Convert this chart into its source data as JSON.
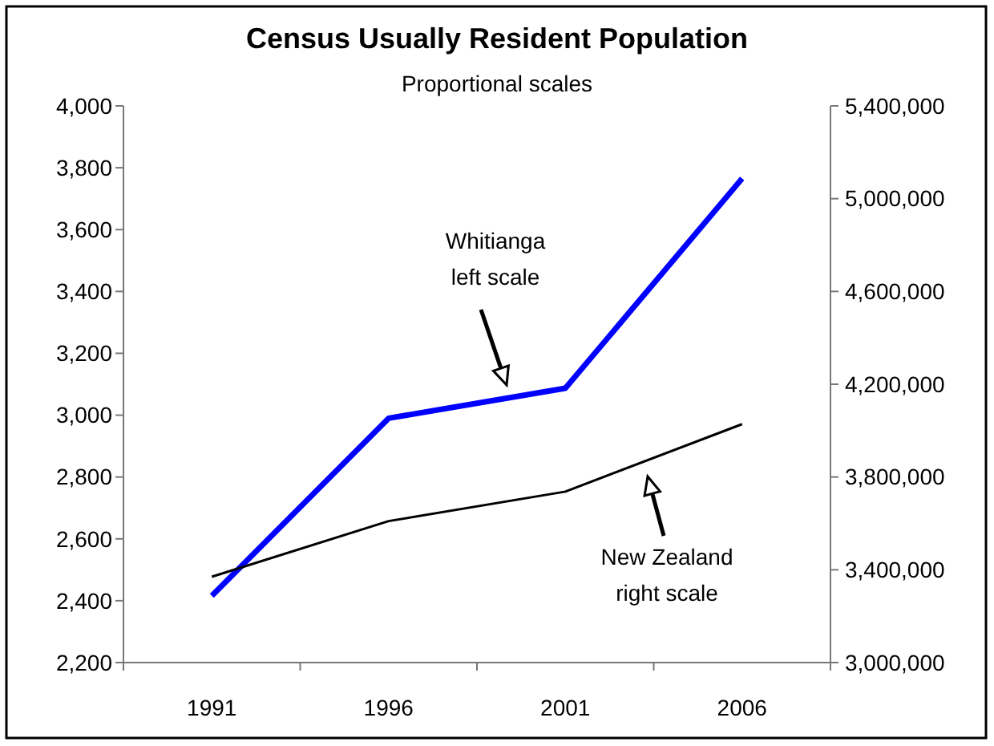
{
  "chart_data": {
    "type": "line",
    "title": "Census Usually Resident Population",
    "subtitle": "Proportional scales",
    "categories": [
      "1991",
      "1996",
      "2001",
      "2006"
    ],
    "series": [
      {
        "color": "#0000ff",
        "values": [
          2416,
          2990,
          3087,
          3765
        ]
      },
      {
        "color": "#000000",
        "values": [
          3370000,
          3610000,
          3737000,
          4028000
        ],
        "axis": "y2"
      }
    ],
    "ylim": [
      2200,
      4000
    ],
    "yticks": [
      {
        "value": 2200,
        "label": "2,200"
      },
      {
        "value": 2400,
        "label": "2,400"
      },
      {
        "value": 2600,
        "label": "2,600"
      },
      {
        "value": 2800,
        "label": "2,800"
      },
      {
        "value": 3000,
        "label": "3,000"
      },
      {
        "value": 3200,
        "label": "3,200"
      },
      {
        "value": 3400,
        "label": "3,400"
      },
      {
        "value": 3600,
        "label": "3,600"
      },
      {
        "value": 3800,
        "label": "3,800"
      },
      {
        "value": 4000,
        "label": "4,000"
      }
    ],
    "y2lim": [
      3000000,
      5400000
    ],
    "y2ticks": [
      {
        "value": 3000000,
        "label": "3,000,000"
      },
      {
        "value": 3400000,
        "label": "3,400,000"
      },
      {
        "value": 3800000,
        "label": "3,800,000"
      },
      {
        "value": 4200000,
        "label": "4,200,000"
      },
      {
        "value": 4600000,
        "label": "4,600,000"
      },
      {
        "value": 5000000,
        "label": "5,000,000"
      },
      {
        "value": 5400000,
        "label": "5,400,000"
      }
    ],
    "annotations": [
      "Whitianga\nleft scale",
      "New Zealand\nright scale"
    ],
    "grid": false,
    "line_style": "solid"
  }
}
